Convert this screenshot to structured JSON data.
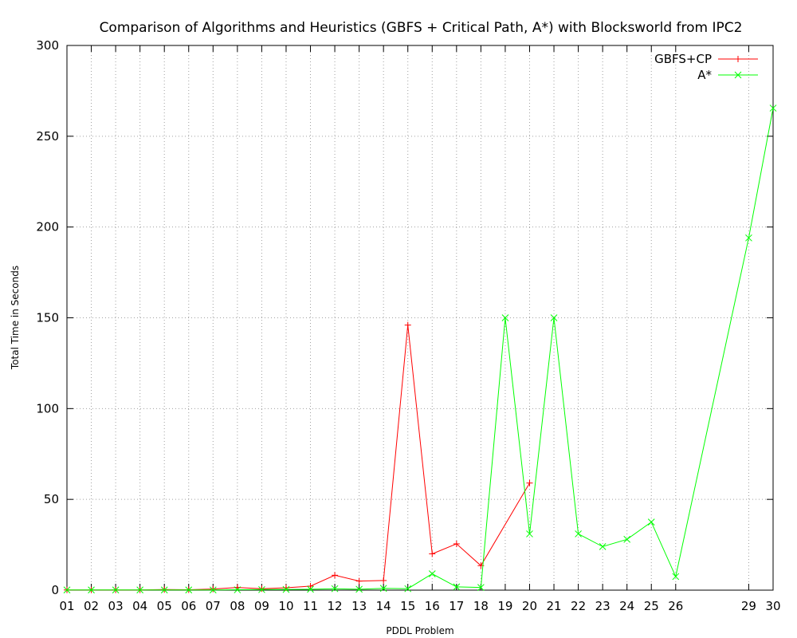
{
  "chart_data": {
    "type": "line",
    "title": "Comparison of Algorithms and Heuristics (GBFS + Critical Path, A*) with Blocksworld from IPC2",
    "xlabel": "PDDL Problem",
    "ylabel": "Total Time in Seconds",
    "ylim": [
      0,
      300
    ],
    "yticks": [
      0,
      50,
      100,
      150,
      200,
      250,
      300
    ],
    "xlim": [
      1,
      30
    ],
    "xticks": [
      {
        "value": 1,
        "label": "01"
      },
      {
        "value": 2,
        "label": "02"
      },
      {
        "value": 3,
        "label": "03"
      },
      {
        "value": 4,
        "label": "04"
      },
      {
        "value": 5,
        "label": "05"
      },
      {
        "value": 6,
        "label": "06"
      },
      {
        "value": 7,
        "label": "07"
      },
      {
        "value": 8,
        "label": "08"
      },
      {
        "value": 9,
        "label": "09"
      },
      {
        "value": 10,
        "label": "10"
      },
      {
        "value": 11,
        "label": "11"
      },
      {
        "value": 12,
        "label": "12"
      },
      {
        "value": 13,
        "label": "13"
      },
      {
        "value": 14,
        "label": "14"
      },
      {
        "value": 15,
        "label": "15"
      },
      {
        "value": 16,
        "label": "16"
      },
      {
        "value": 17,
        "label": "17"
      },
      {
        "value": 18,
        "label": "18"
      },
      {
        "value": 19,
        "label": "19"
      },
      {
        "value": 20,
        "label": "20"
      },
      {
        "value": 21,
        "label": "21"
      },
      {
        "value": 22,
        "label": "22"
      },
      {
        "value": 23,
        "label": "23"
      },
      {
        "value": 24,
        "label": "24"
      },
      {
        "value": 25,
        "label": "25"
      },
      {
        "value": 26,
        "label": "26"
      },
      {
        "value": 29,
        "label": "29"
      },
      {
        "value": 30,
        "label": "30"
      }
    ],
    "grid": true,
    "legend_position": "top-right",
    "series": [
      {
        "name": "GBFS+CP",
        "color": "#ff0000",
        "marker": "plus",
        "x": [
          1,
          2,
          3,
          4,
          5,
          6,
          7,
          8,
          9,
          10,
          11,
          12,
          13,
          14,
          15,
          16,
          17,
          18,
          20
        ],
        "y": [
          0.1,
          0.1,
          0.1,
          0.1,
          0.3,
          0.2,
          0.6,
          1.5,
          0.8,
          1.3,
          2.2,
          8.2,
          5.0,
          5.3,
          146,
          20,
          25.5,
          13.5,
          59
        ]
      },
      {
        "name": "A*",
        "color": "#00ff00",
        "marker": "cross",
        "x": [
          1,
          2,
          3,
          4,
          5,
          6,
          7,
          8,
          9,
          10,
          11,
          12,
          13,
          14,
          15,
          16,
          17,
          18,
          19,
          20,
          21,
          22,
          23,
          24,
          25,
          26,
          29,
          30
        ],
        "y": [
          0.1,
          0.1,
          0.1,
          0.1,
          0.1,
          0.1,
          0.1,
          0.2,
          0.3,
          0.4,
          0.5,
          0.8,
          0.5,
          1.0,
          0.8,
          9.0,
          1.8,
          1.5,
          150,
          31,
          150,
          31,
          24,
          28,
          37.5,
          7.5,
          194,
          265.5
        ]
      }
    ]
  }
}
